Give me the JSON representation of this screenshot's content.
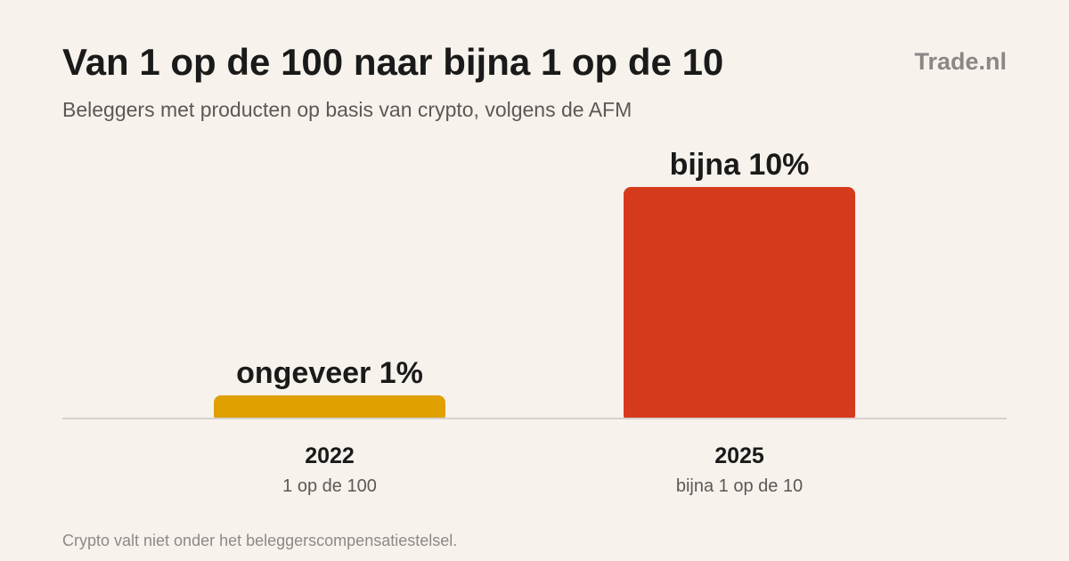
{
  "header": {
    "title": "Van 1 op de 100 naar bijna 1 op de 10",
    "subtitle": "Beleggers met producten op basis van crypto, volgens de AFM",
    "brand": "Trade.nl"
  },
  "footer": {
    "note": "Crypto valt niet onder het beleggerscompensatiestelsel."
  },
  "chart_data": {
    "type": "bar",
    "title": "Van 1 op de 100 naar bijna 1 op de 10",
    "subtitle": "Beleggers met producten op basis van crypto, volgens de AFM",
    "xlabel": "",
    "ylabel": "",
    "categories": [
      "2022",
      "2025"
    ],
    "category_sublabels": [
      "1 op de 100",
      "bijna 1 op de 10"
    ],
    "values": [
      1,
      10
    ],
    "unit": "%",
    "data_labels": [
      "ongeveer 1%",
      "bijna 10%"
    ],
    "colors": [
      "#e0a000",
      "#d63a1c"
    ],
    "ylim": [
      0,
      10
    ],
    "grid": false,
    "legend": "none"
  }
}
